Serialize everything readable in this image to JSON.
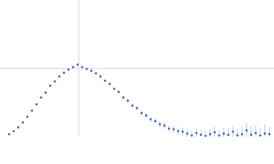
{
  "chart_data": {
    "type": "scatter",
    "xlim": [
      0,
      6
    ],
    "ylim": [
      0,
      2.2
    ],
    "reference_lines": {
      "x": 1.725,
      "y": 1.1
    },
    "reference_color": "#cccccc",
    "color": "#3b66be",
    "error_color": "#aec1ea",
    "x": [
      0.2,
      0.3,
      0.4,
      0.5,
      0.6,
      0.7,
      0.8,
      0.9,
      1.0,
      1.1,
      1.2,
      1.3,
      1.4,
      1.5,
      1.6,
      1.7,
      1.8,
      1.9,
      2.0,
      2.1,
      2.2,
      2.3,
      2.4,
      2.5,
      2.6,
      2.7,
      2.8,
      2.9,
      3.0,
      3.1,
      3.2,
      3.3,
      3.4,
      3.5,
      3.6,
      3.7,
      3.8,
      3.9,
      4.0,
      4.1,
      4.2,
      4.3,
      4.4,
      4.5,
      4.6,
      4.7,
      4.8,
      4.9,
      5.0,
      5.1,
      5.2,
      5.3,
      5.4,
      5.5,
      5.6,
      5.7,
      5.8,
      5.9
    ],
    "values": [
      0.04,
      0.09,
      0.15,
      0.23,
      0.32,
      0.42,
      0.52,
      0.63,
      0.71,
      0.82,
      0.89,
      0.97,
      1.03,
      1.08,
      1.12,
      1.16,
      1.12,
      1.09,
      1.06,
      1.02,
      0.97,
      0.9,
      0.85,
      0.77,
      0.72,
      0.63,
      0.58,
      0.5,
      0.46,
      0.38,
      0.34,
      0.28,
      0.25,
      0.2,
      0.18,
      0.13,
      0.12,
      0.09,
      0.08,
      0.05,
      0.02,
      0.06,
      0.03,
      0.01,
      0.04,
      0.07,
      0.02,
      0.05,
      0.03,
      0.08,
      0.02,
      0.04,
      0.1,
      0.03,
      0.06,
      0.02,
      0.05,
      0.04
    ],
    "errors": [
      0.01,
      0.01,
      0.01,
      0.01,
      0.01,
      0.01,
      0.01,
      0.01,
      0.01,
      0.01,
      0.01,
      0.01,
      0.01,
      0.01,
      0.01,
      0.015,
      0.015,
      0.015,
      0.02,
      0.02,
      0.02,
      0.02,
      0.025,
      0.025,
      0.03,
      0.03,
      0.03,
      0.035,
      0.035,
      0.04,
      0.04,
      0.04,
      0.045,
      0.05,
      0.05,
      0.05,
      0.06,
      0.06,
      0.06,
      0.07,
      0.07,
      0.07,
      0.08,
      0.08,
      0.08,
      0.09,
      0.09,
      0.09,
      0.1,
      0.1,
      0.1,
      0.12,
      0.12,
      0.15,
      0.12,
      0.12,
      0.15,
      0.12
    ]
  }
}
